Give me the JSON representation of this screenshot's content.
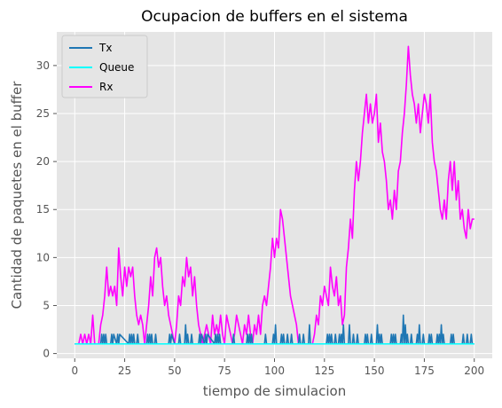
{
  "chart_data": {
    "type": "line",
    "title": "Ocupacion de buffers en el sistema",
    "xlabel": "tiempo de simulacion",
    "ylabel": "Cantidad de paquetes en el buffer",
    "xlim": [
      -9,
      209
    ],
    "ylim": [
      -0.5,
      33.5
    ],
    "xticks": [
      0,
      25,
      50,
      75,
      100,
      125,
      150,
      175,
      200
    ],
    "yticks": [
      0,
      5,
      10,
      15,
      20,
      25,
      30
    ],
    "grid": true,
    "legend_position": "top-left",
    "background_color": "#e5e5e5",
    "grid_color": "#ffffff",
    "series": [
      {
        "name": "Tx",
        "color": "#1f77b4",
        "x": [
          0,
          13,
          13.5,
          14,
          14.5,
          15,
          15.5,
          16,
          18,
          18.5,
          19,
          19.5,
          21,
          21.5,
          22,
          22.5,
          27,
          27.5,
          28,
          28.5,
          29,
          29.5,
          30,
          31,
          31.5,
          32,
          36,
          36.5,
          37,
          37.5,
          38,
          38.5,
          39,
          40,
          40.5,
          41,
          47,
          47.5,
          48,
          48.5,
          50,
          52,
          52.5,
          53,
          55,
          55.5,
          56,
          56.5,
          57,
          58,
          58.5,
          59,
          62,
          62.5,
          63,
          63.5,
          65,
          65.5,
          66,
          66.5,
          70,
          70.5,
          71,
          71.5,
          72,
          72.5,
          73,
          79,
          79.5,
          80,
          86,
          86.5,
          87,
          87.5,
          88,
          88.5,
          89,
          95,
          95.5,
          96,
          99,
          99.5,
          100,
          100.5,
          101,
          103,
          103.5,
          104,
          104.5,
          105,
          106,
          106.5,
          107,
          108,
          108.5,
          109,
          112,
          112.5,
          113,
          114,
          114.5,
          115,
          117,
          117.5,
          118,
          126,
          126.5,
          127,
          127.5,
          128,
          128.5,
          129,
          130,
          130.5,
          131,
          132,
          132.5,
          133,
          133.5,
          134,
          134.5,
          135,
          137,
          137.5,
          138,
          139,
          139.5,
          140,
          141,
          141.5,
          142,
          145,
          145.5,
          146,
          146.5,
          147,
          148,
          148.5,
          149,
          151,
          151.5,
          152,
          152.5,
          153,
          153.5,
          154,
          158,
          158.5,
          159,
          159.5,
          160,
          160.5,
          161,
          163,
          163.5,
          164,
          164.5,
          165,
          165.5,
          166,
          166.5,
          167,
          168,
          168.5,
          169,
          171,
          171.5,
          172,
          172.5,
          173,
          174,
          174.5,
          175,
          177,
          177.5,
          178,
          178.5,
          179,
          181,
          181.5,
          182,
          182.5,
          183,
          183.5,
          184,
          184.5,
          185,
          188,
          188.5,
          189,
          189.5,
          190,
          194,
          194.5,
          195,
          196,
          196.5,
          197,
          198,
          198.5,
          199,
          200
        ],
        "y": [
          1,
          1,
          2,
          1,
          2,
          1,
          2,
          1,
          1,
          2,
          1,
          2,
          1,
          2,
          1,
          2,
          1,
          2,
          1,
          2,
          1,
          2,
          1,
          1,
          2,
          1,
          1,
          2,
          1,
          2,
          1,
          2,
          1,
          1,
          2,
          1,
          1,
          2,
          1,
          2,
          1,
          1,
          2,
          1,
          1,
          3,
          1,
          2,
          1,
          1,
          2,
          1,
          1,
          2,
          1,
          2,
          1,
          2,
          1,
          2,
          1,
          2,
          1,
          2,
          1,
          2,
          1,
          1,
          2,
          1,
          1,
          2,
          1,
          2,
          1,
          2,
          1,
          1,
          2,
          1,
          1,
          2,
          1,
          3,
          1,
          1,
          2,
          1,
          2,
          1,
          1,
          2,
          1,
          1,
          2,
          1,
          1,
          2,
          1,
          1,
          2,
          1,
          1,
          3,
          1,
          1,
          2,
          1,
          2,
          1,
          2,
          1,
          1,
          2,
          1,
          1,
          2,
          1,
          2,
          1,
          3,
          1,
          1,
          3,
          1,
          1,
          2,
          1,
          1,
          2,
          1,
          1,
          2,
          1,
          2,
          1,
          1,
          2,
          1,
          1,
          3,
          1,
          2,
          1,
          2,
          1,
          1,
          2,
          1,
          2,
          1,
          2,
          1,
          1,
          2,
          1,
          4,
          1,
          3,
          1,
          2,
          1,
          1,
          2,
          1,
          1,
          2,
          1,
          3,
          1,
          1,
          2,
          1,
          1,
          2,
          1,
          2,
          1,
          1,
          2,
          1,
          2,
          1,
          3,
          1,
          2,
          1,
          1,
          2,
          1,
          2,
          1,
          1,
          2,
          1,
          1,
          2,
          1,
          1,
          2,
          1,
          1
        ],
        "line_width": 2
      },
      {
        "name": "Queue",
        "color": "#00ffff",
        "x": [
          0,
          200
        ],
        "y": [
          1,
          1
        ],
        "line_width": 2
      },
      {
        "name": "Rx",
        "color": "#ff00ff",
        "x": [
          0,
          2,
          3,
          4,
          5,
          6,
          7,
          8,
          9,
          10,
          11,
          12,
          13,
          14,
          15,
          16,
          17,
          18,
          19,
          20,
          21,
          22,
          23,
          24,
          25,
          26,
          27,
          28,
          29,
          30,
          31,
          32,
          33,
          34,
          35,
          36,
          37,
          38,
          39,
          40,
          41,
          42,
          43,
          44,
          45,
          46,
          47,
          48,
          49,
          50,
          51,
          52,
          53,
          54,
          55,
          56,
          57,
          58,
          59,
          60,
          61,
          62,
          63,
          64,
          65,
          66,
          67,
          68,
          69,
          70,
          71,
          72,
          73,
          74,
          75,
          76,
          77,
          78,
          79,
          80,
          81,
          82,
          83,
          84,
          85,
          86,
          87,
          88,
          89,
          90,
          91,
          92,
          93,
          94,
          95,
          96,
          97,
          98,
          99,
          100,
          101,
          102,
          103,
          104,
          105,
          106,
          107,
          108,
          109,
          110,
          111,
          112,
          113,
          114,
          115,
          116,
          117,
          118,
          119,
          120,
          121,
          122,
          123,
          124,
          125,
          126,
          127,
          128,
          129,
          130,
          131,
          132,
          133,
          134,
          135,
          136,
          137,
          138,
          139,
          140,
          141,
          142,
          143,
          144,
          145,
          146,
          147,
          148,
          149,
          150,
          151,
          152,
          153,
          154,
          155,
          156,
          157,
          158,
          159,
          160,
          161,
          162,
          163,
          164,
          165,
          166,
          167,
          168,
          169,
          170,
          171,
          172,
          173,
          174,
          175,
          176,
          177,
          178,
          179,
          180,
          181,
          182,
          183,
          184,
          185,
          186,
          187,
          188,
          189,
          190,
          191,
          192,
          193,
          194,
          195,
          196,
          197,
          198,
          199,
          200
        ],
        "y": [
          1,
          1,
          2,
          1,
          2,
          1,
          2,
          1,
          4,
          1,
          1,
          1,
          3,
          4,
          6,
          9,
          6,
          7,
          6,
          7,
          5,
          11,
          8,
          6,
          9,
          7,
          9,
          8,
          9,
          6,
          4,
          3,
          4,
          3,
          1,
          3,
          5,
          8,
          6,
          10,
          11,
          9,
          10,
          7,
          5,
          6,
          4,
          3,
          2,
          1,
          3,
          6,
          5,
          8,
          7,
          10,
          8,
          9,
          6,
          8,
          5,
          3,
          2,
          1,
          2,
          3,
          2,
          1,
          4,
          2,
          3,
          2,
          4,
          2,
          1,
          4,
          3,
          2,
          1,
          2,
          4,
          3,
          2,
          1,
          3,
          2,
          4,
          2,
          1,
          3,
          2,
          4,
          2,
          5,
          6,
          5,
          7,
          9,
          12,
          10,
          12,
          11,
          15,
          14,
          12,
          10,
          8,
          6,
          5,
          4,
          3,
          1,
          1,
          1,
          1,
          1,
          1,
          1,
          1,
          2,
          4,
          3,
          6,
          5,
          7,
          6,
          5,
          9,
          7,
          6,
          8,
          5,
          6,
          3,
          4,
          9,
          11,
          14,
          12,
          17,
          20,
          18,
          20,
          23,
          25,
          27,
          24,
          26,
          24,
          25,
          27,
          22,
          24,
          21,
          20,
          18,
          15,
          16,
          14,
          17,
          15,
          19,
          20,
          23,
          25,
          28,
          32,
          29,
          27,
          26,
          24,
          26,
          23,
          25,
          27,
          26,
          24,
          27,
          22,
          20,
          19,
          17,
          15,
          14,
          16,
          14,
          18,
          20,
          17,
          20,
          16,
          18,
          14,
          15,
          13,
          12,
          15,
          13,
          14,
          14
        ]
      }
    ]
  }
}
